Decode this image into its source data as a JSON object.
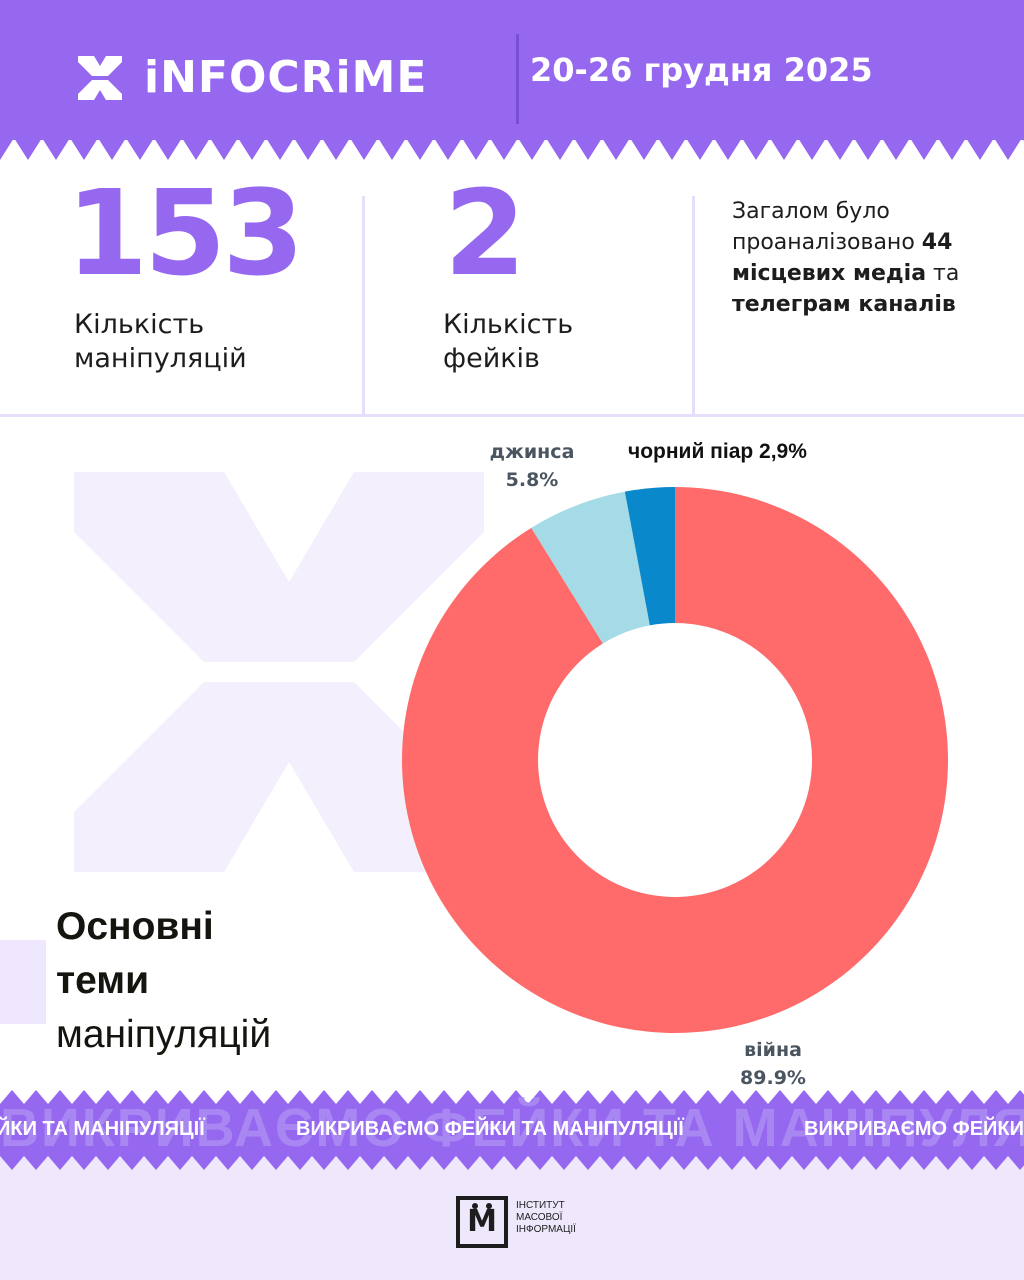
{
  "header": {
    "brand": "iNFOCRiME",
    "date": "20-26 грудня 2025"
  },
  "stats": [
    {
      "value": "153",
      "label_line1": "Кількість",
      "label_line2": "маніпуляцій"
    },
    {
      "value": "2",
      "label_line1": "Кількість",
      "label_line2": "фейків"
    }
  ],
  "summary": {
    "part1": "Загалом було проаналізовано ",
    "count": "44",
    "bold1": "місцевих медіа",
    "part2": " та ",
    "bold2": "телеграм каналів"
  },
  "chart_data": {
    "type": "pie",
    "donut": true,
    "categories": [
      "війна",
      "джинса",
      "чорний піар"
    ],
    "values": [
      89.9,
      5.8,
      2.9
    ],
    "labels": [
      "війна\n89.9%",
      "джинса\n5.8%",
      "чорний піар 2,9%"
    ],
    "colors": [
      "#ff6b6b",
      "#a5dbe6",
      "#0a88cc"
    ]
  },
  "chart_labels": {
    "dzhynsa_name": "джинса",
    "dzhynsa_value": "5.8%",
    "black_pr": "чорний піар 2,9%",
    "war_name": "війна",
    "war_value": "89.9%"
  },
  "heading": {
    "line1": "Основні",
    "line2": "теми",
    "line3": "маніпуляцій"
  },
  "ticker": {
    "ghost": "ВИКРИВАЄМО ФЕЙКИ ТА МАНІПУЛЯЦІЇ",
    "text1": "ЙКИ ТА МАНІПУЛЯЦІЇ",
    "text2": "ВИКРИВАЄМО ФЕЙКИ ТА МАНІПУЛЯЦІЇ",
    "text3": "ВИКРИВАЄМО ФЕЙКИ"
  },
  "footer": {
    "imi_letter": "М",
    "org_line1": "ІНСТИТУТ",
    "org_line2": "МАСОВОЇ",
    "org_line3": "ІНФОРМАЦІЇ"
  }
}
